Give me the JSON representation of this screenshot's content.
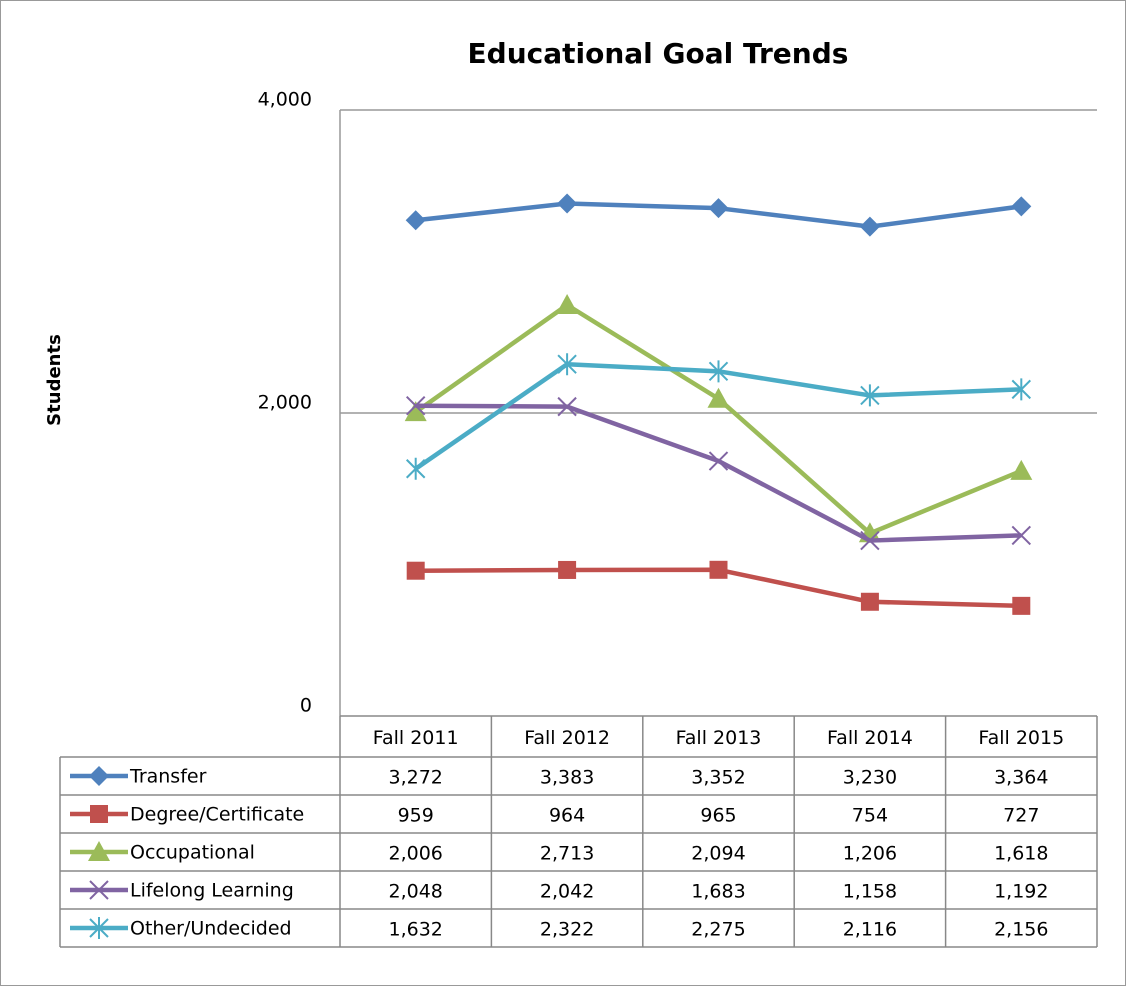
{
  "chart_data": {
    "type": "line",
    "title": "Educational Goal Trends",
    "ylabel": "Students",
    "categories": [
      "Fall 2011",
      "Fall 2012",
      "Fall 2013",
      "Fall 2014",
      "Fall 2015"
    ],
    "ylim": [
      0,
      4000
    ],
    "yticks": [
      0,
      {
        "value": 2000,
        "label": "2,000"
      },
      {
        "value": 4000,
        "label": "4,000"
      }
    ],
    "grid": true,
    "series": [
      {
        "name": "Transfer",
        "color": "#4f81bd",
        "marker": "diamond",
        "values": [
          3272,
          3383,
          3352,
          3230,
          3364
        ],
        "value_labels": [
          "3,272",
          "3,383",
          "3,352",
          "3,230",
          "3,364"
        ]
      },
      {
        "name": "Degree/Certificate",
        "color": "#c0504d",
        "marker": "square",
        "values": [
          959,
          964,
          965,
          754,
          727
        ],
        "value_labels": [
          "959",
          "964",
          "965",
          "754",
          "727"
        ]
      },
      {
        "name": "Occupational",
        "color": "#9bbb59",
        "marker": "triangle",
        "values": [
          2006,
          2713,
          2094,
          1206,
          1618
        ],
        "value_labels": [
          "2,006",
          "2,713",
          "2,094",
          "1,206",
          "1,618"
        ]
      },
      {
        "name": "Lifelong Learning",
        "color": "#8064a2",
        "marker": "x",
        "values": [
          2048,
          2042,
          1683,
          1158,
          1192
        ],
        "value_labels": [
          "2,048",
          "2,042",
          "1,683",
          "1,158",
          "1,192"
        ]
      },
      {
        "name": "Other/Undecided",
        "color": "#4bacc6",
        "marker": "star",
        "values": [
          1632,
          2322,
          2275,
          2116,
          2156
        ],
        "value_labels": [
          "1,632",
          "2,322",
          "2,275",
          "2,116",
          "2,156"
        ]
      }
    ]
  }
}
